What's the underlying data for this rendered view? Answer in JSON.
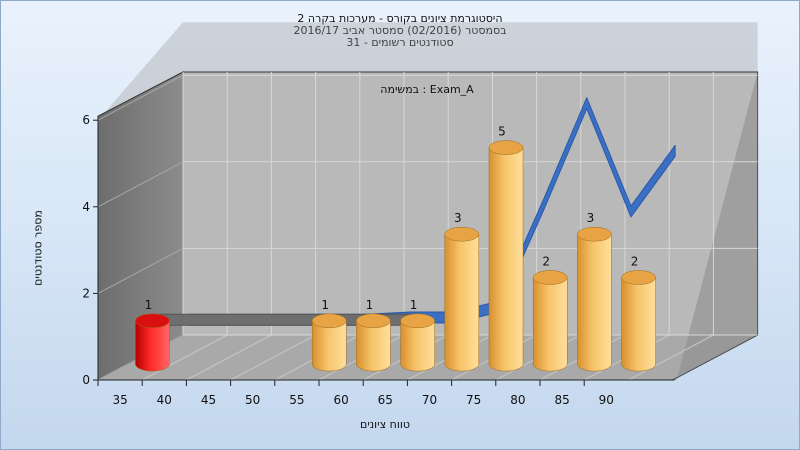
{
  "chart_data": {
    "type": "bar",
    "title_lines": [
      "היסטוגרמת ציונים בקורס - מערכות בקרה 2",
      "בסמסטר  (02/2016)  סמסטר אביב 2016/17",
      "סטודנטים רשומים - 31"
    ],
    "subtitle": "במשימה : Exam_A",
    "xlabel": "טווח ציונים",
    "ylabel": "מספר סטודנטים",
    "x_ticks": [
      "35",
      "40",
      "45",
      "50",
      "55",
      "60",
      "65",
      "70",
      "75",
      "80",
      "85",
      "90"
    ],
    "y_ticks": [
      "0",
      "2",
      "4",
      "6"
    ],
    "ylim": [
      0,
      6
    ],
    "bars": [
      {
        "range_start": 35,
        "value": 1,
        "label": "1",
        "color": "red"
      },
      {
        "range_start": 55,
        "value": 1,
        "label": "1",
        "color": "orange"
      },
      {
        "range_start": 60,
        "value": 1,
        "label": "1",
        "color": "orange"
      },
      {
        "range_start": 65,
        "value": 1,
        "label": "1",
        "color": "orange"
      },
      {
        "range_start": 70,
        "value": 3,
        "label": "3",
        "color": "orange"
      },
      {
        "range_start": 75,
        "value": 5,
        "label": "5",
        "color": "orange"
      },
      {
        "range_start": 80,
        "value": 2,
        "label": "2",
        "color": "orange"
      },
      {
        "range_start": 85,
        "value": 3,
        "label": "3",
        "color": "orange"
      },
      {
        "range_start": 90,
        "value": 2,
        "label": "2",
        "color": "orange"
      }
    ],
    "distribution_curve": [
      {
        "x": 37.5,
        "y": 0
      },
      {
        "x": 42.5,
        "y": 0
      },
      {
        "x": 47.5,
        "y": 0
      },
      {
        "x": 52.5,
        "y": 0
      },
      {
        "x": 57.5,
        "y": 0
      },
      {
        "x": 62.5,
        "y": 0.05
      },
      {
        "x": 67.5,
        "y": 0.05
      },
      {
        "x": 72.5,
        "y": 0.3
      },
      {
        "x": 77.5,
        "y": 2.6
      },
      {
        "x": 82.5,
        "y": 5.0
      },
      {
        "x": 87.5,
        "y": 2.5
      },
      {
        "x": 92.5,
        "y": 3.9
      }
    ],
    "colors": {
      "bar_orange": "#f2b65a",
      "bar_red": "#e41616",
      "curve": "#3a6fc4",
      "wall_back": "#b9b9b9",
      "wall_left": "#808080",
      "floor": "#a9a9a9"
    },
    "grid": true
  }
}
